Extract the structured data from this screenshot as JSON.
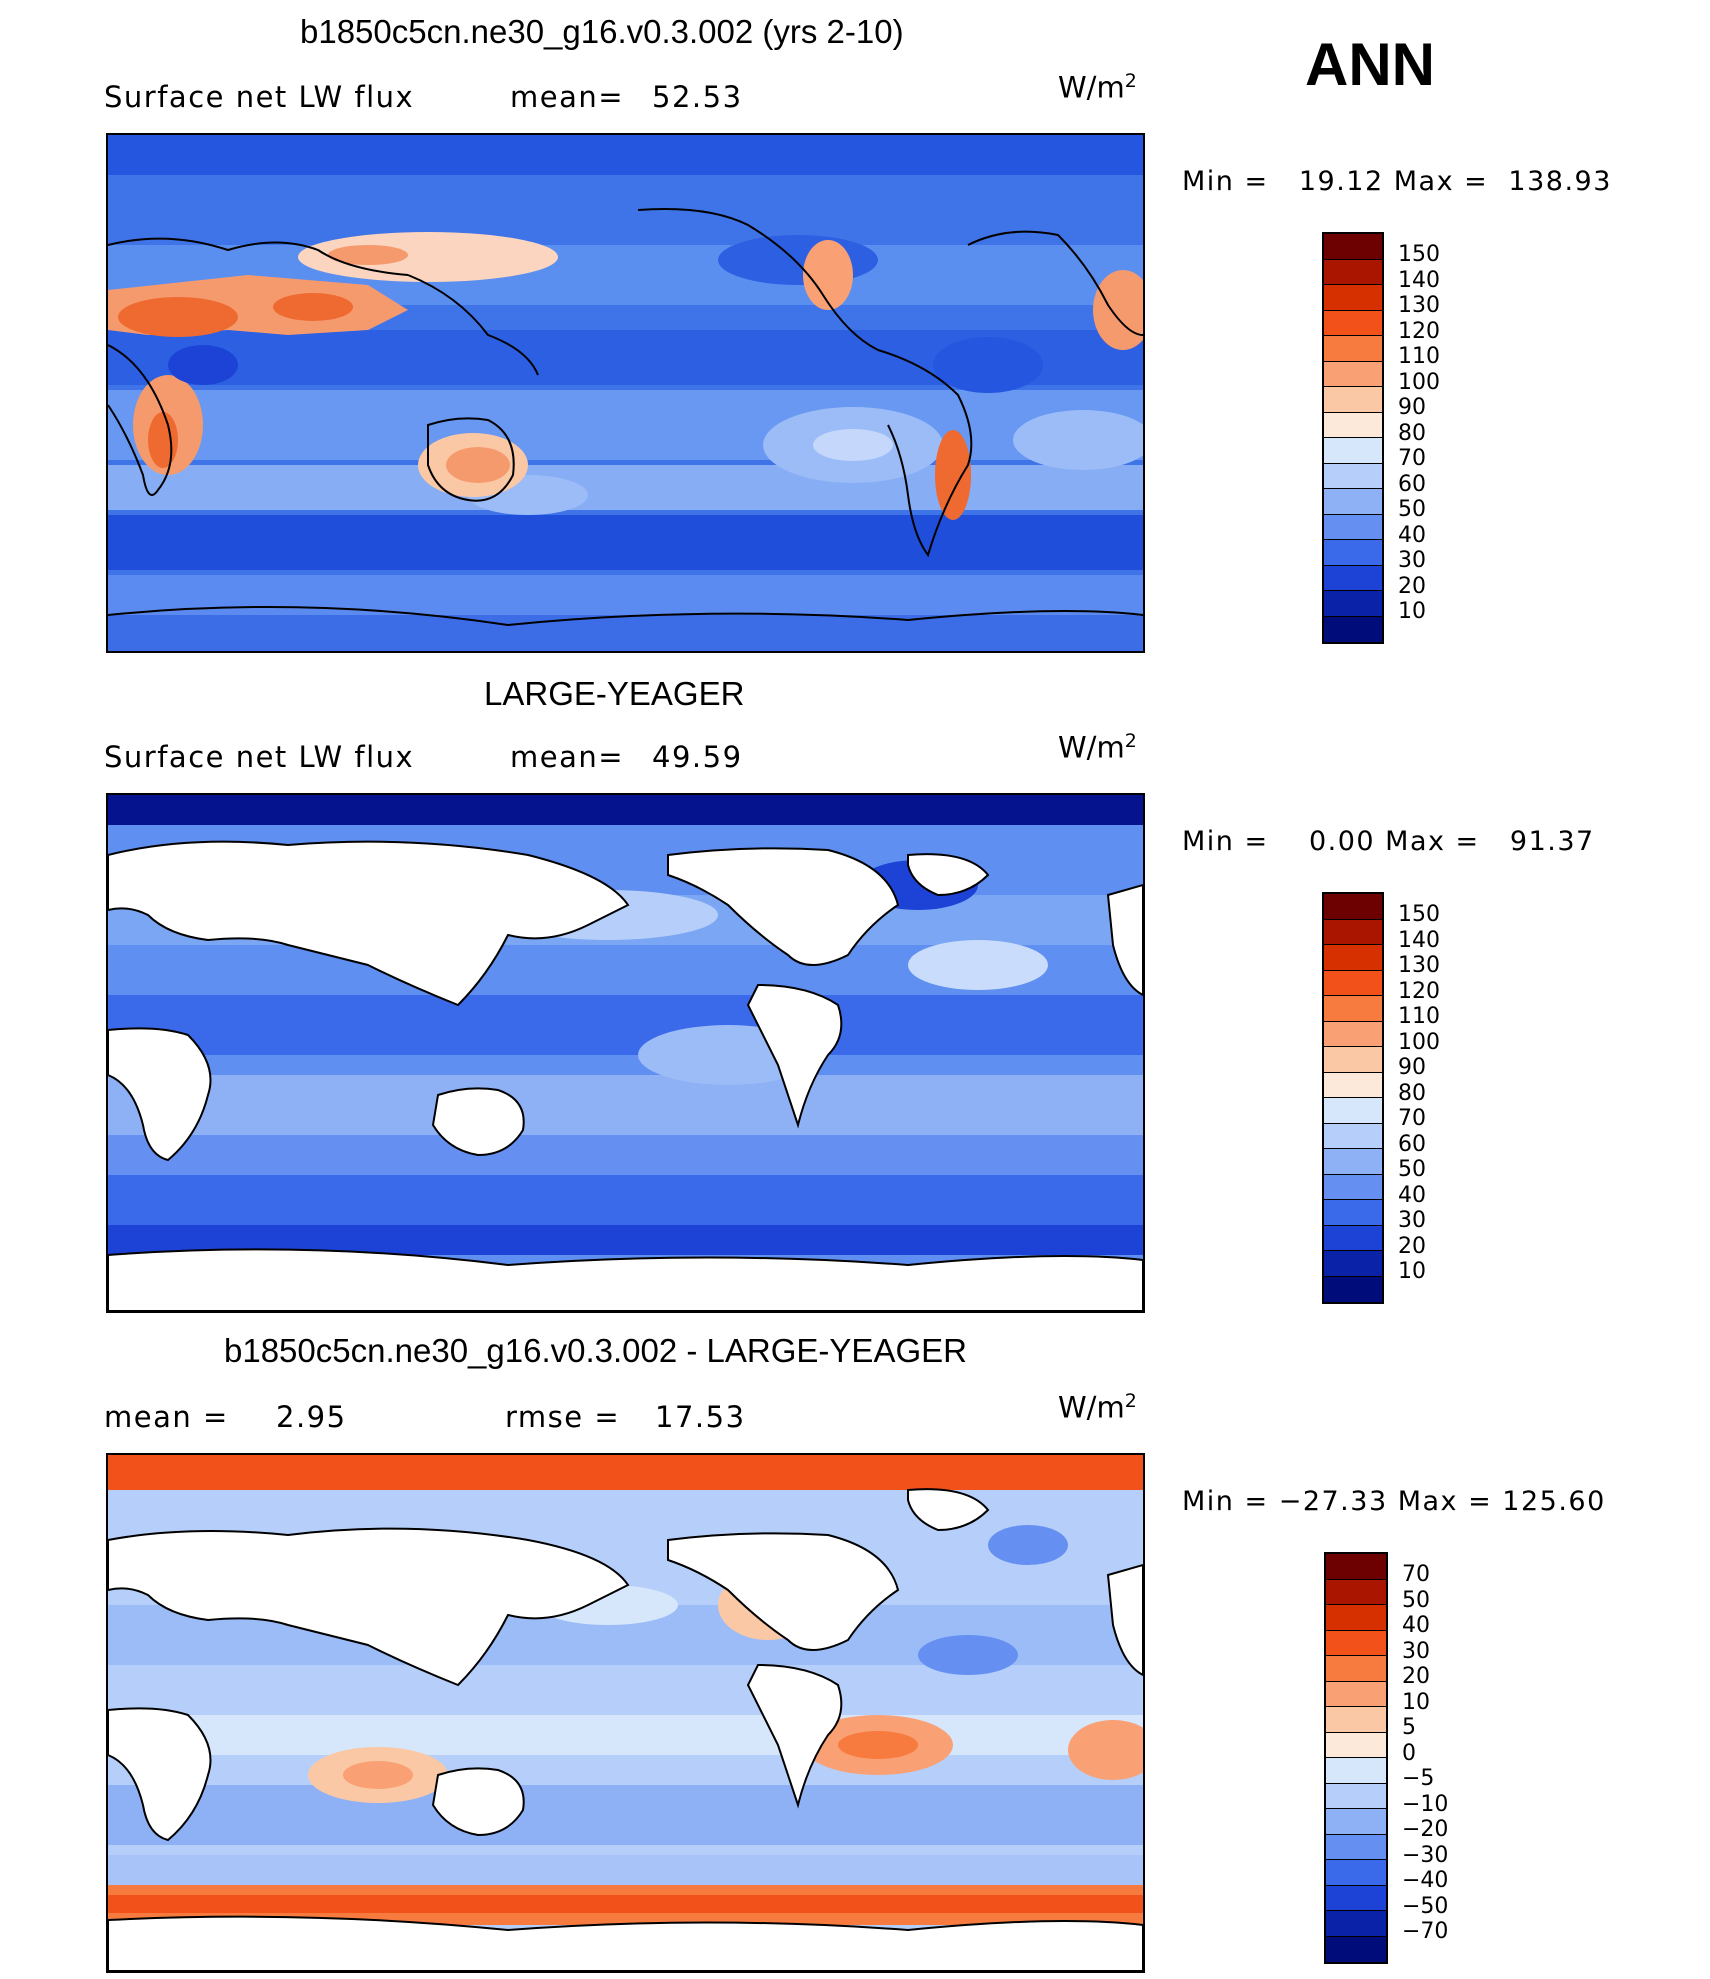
{
  "season": "ANN",
  "panels": [
    {
      "id": "case",
      "title": "b1850c5cn.ne30_g16.v0.3.002 (yrs 2-10)",
      "variable_label": "Surface net LW flux",
      "stat1_label": "mean=",
      "stat1_value": "52.53",
      "stat2_label": "",
      "stat2_value": "",
      "units": "W/m",
      "units_exp": "2",
      "min_max": "Min =   19.12 Max =  138.93",
      "colorbar_labels": [
        "150",
        "140",
        "130",
        "120",
        "110",
        "100",
        "90",
        "80",
        "70",
        "60",
        "50",
        "40",
        "30",
        "20",
        "10"
      ],
      "colorbar_colors": [
        "#6d0000",
        "#aa1500",
        "#d73000",
        "#f2521a",
        "#f77b3f",
        "#f9a074",
        "#fbc8a6",
        "#fde9d9",
        "#d6e6fb",
        "#b6cffa",
        "#8eb1f6",
        "#6590f1",
        "#3a69ea",
        "#1c43d6",
        "#0a22a8",
        "#000c7a"
      ]
    },
    {
      "id": "obs",
      "title": "LARGE-YEAGER",
      "variable_label": "Surface net LW flux",
      "stat1_label": "mean=",
      "stat1_value": "49.59",
      "stat2_label": "",
      "stat2_value": "",
      "units": "W/m",
      "units_exp": "2",
      "min_max": "Min =    0.00 Max =   91.37",
      "colorbar_labels": [
        "150",
        "140",
        "130",
        "120",
        "110",
        "100",
        "90",
        "80",
        "70",
        "60",
        "50",
        "40",
        "30",
        "20",
        "10"
      ],
      "colorbar_colors": [
        "#6d0000",
        "#aa1500",
        "#d73000",
        "#f2521a",
        "#f77b3f",
        "#f9a074",
        "#fbc8a6",
        "#fde9d9",
        "#d6e6fb",
        "#b6cffa",
        "#8eb1f6",
        "#6590f1",
        "#3a69ea",
        "#1c43d6",
        "#0a22a8",
        "#000c7a"
      ]
    },
    {
      "id": "diff",
      "title": "b1850c5cn.ne30_g16.v0.3.002 - LARGE-YEAGER",
      "variable_label": "",
      "stat1_label": "mean =",
      "stat1_value": "2.95",
      "stat2_label": "rmse =",
      "stat2_value": "17.53",
      "units": "W/m",
      "units_exp": "2",
      "min_max": "Min = −27.33 Max = 125.60",
      "colorbar_labels": [
        "70",
        "50",
        "40",
        "30",
        "20",
        "10",
        "5",
        "0",
        "−5",
        "−10",
        "−20",
        "−30",
        "−40",
        "−50",
        "−70"
      ],
      "colorbar_colors": [
        "#6d0000",
        "#aa1500",
        "#d73000",
        "#f2521a",
        "#f77b3f",
        "#f9a074",
        "#fbc8a6",
        "#fde9d9",
        "#d6e6fb",
        "#b6cffa",
        "#8eb1f6",
        "#6590f1",
        "#3a69ea",
        "#1c43d6",
        "#0a22a8",
        "#000c7a"
      ]
    }
  ]
}
